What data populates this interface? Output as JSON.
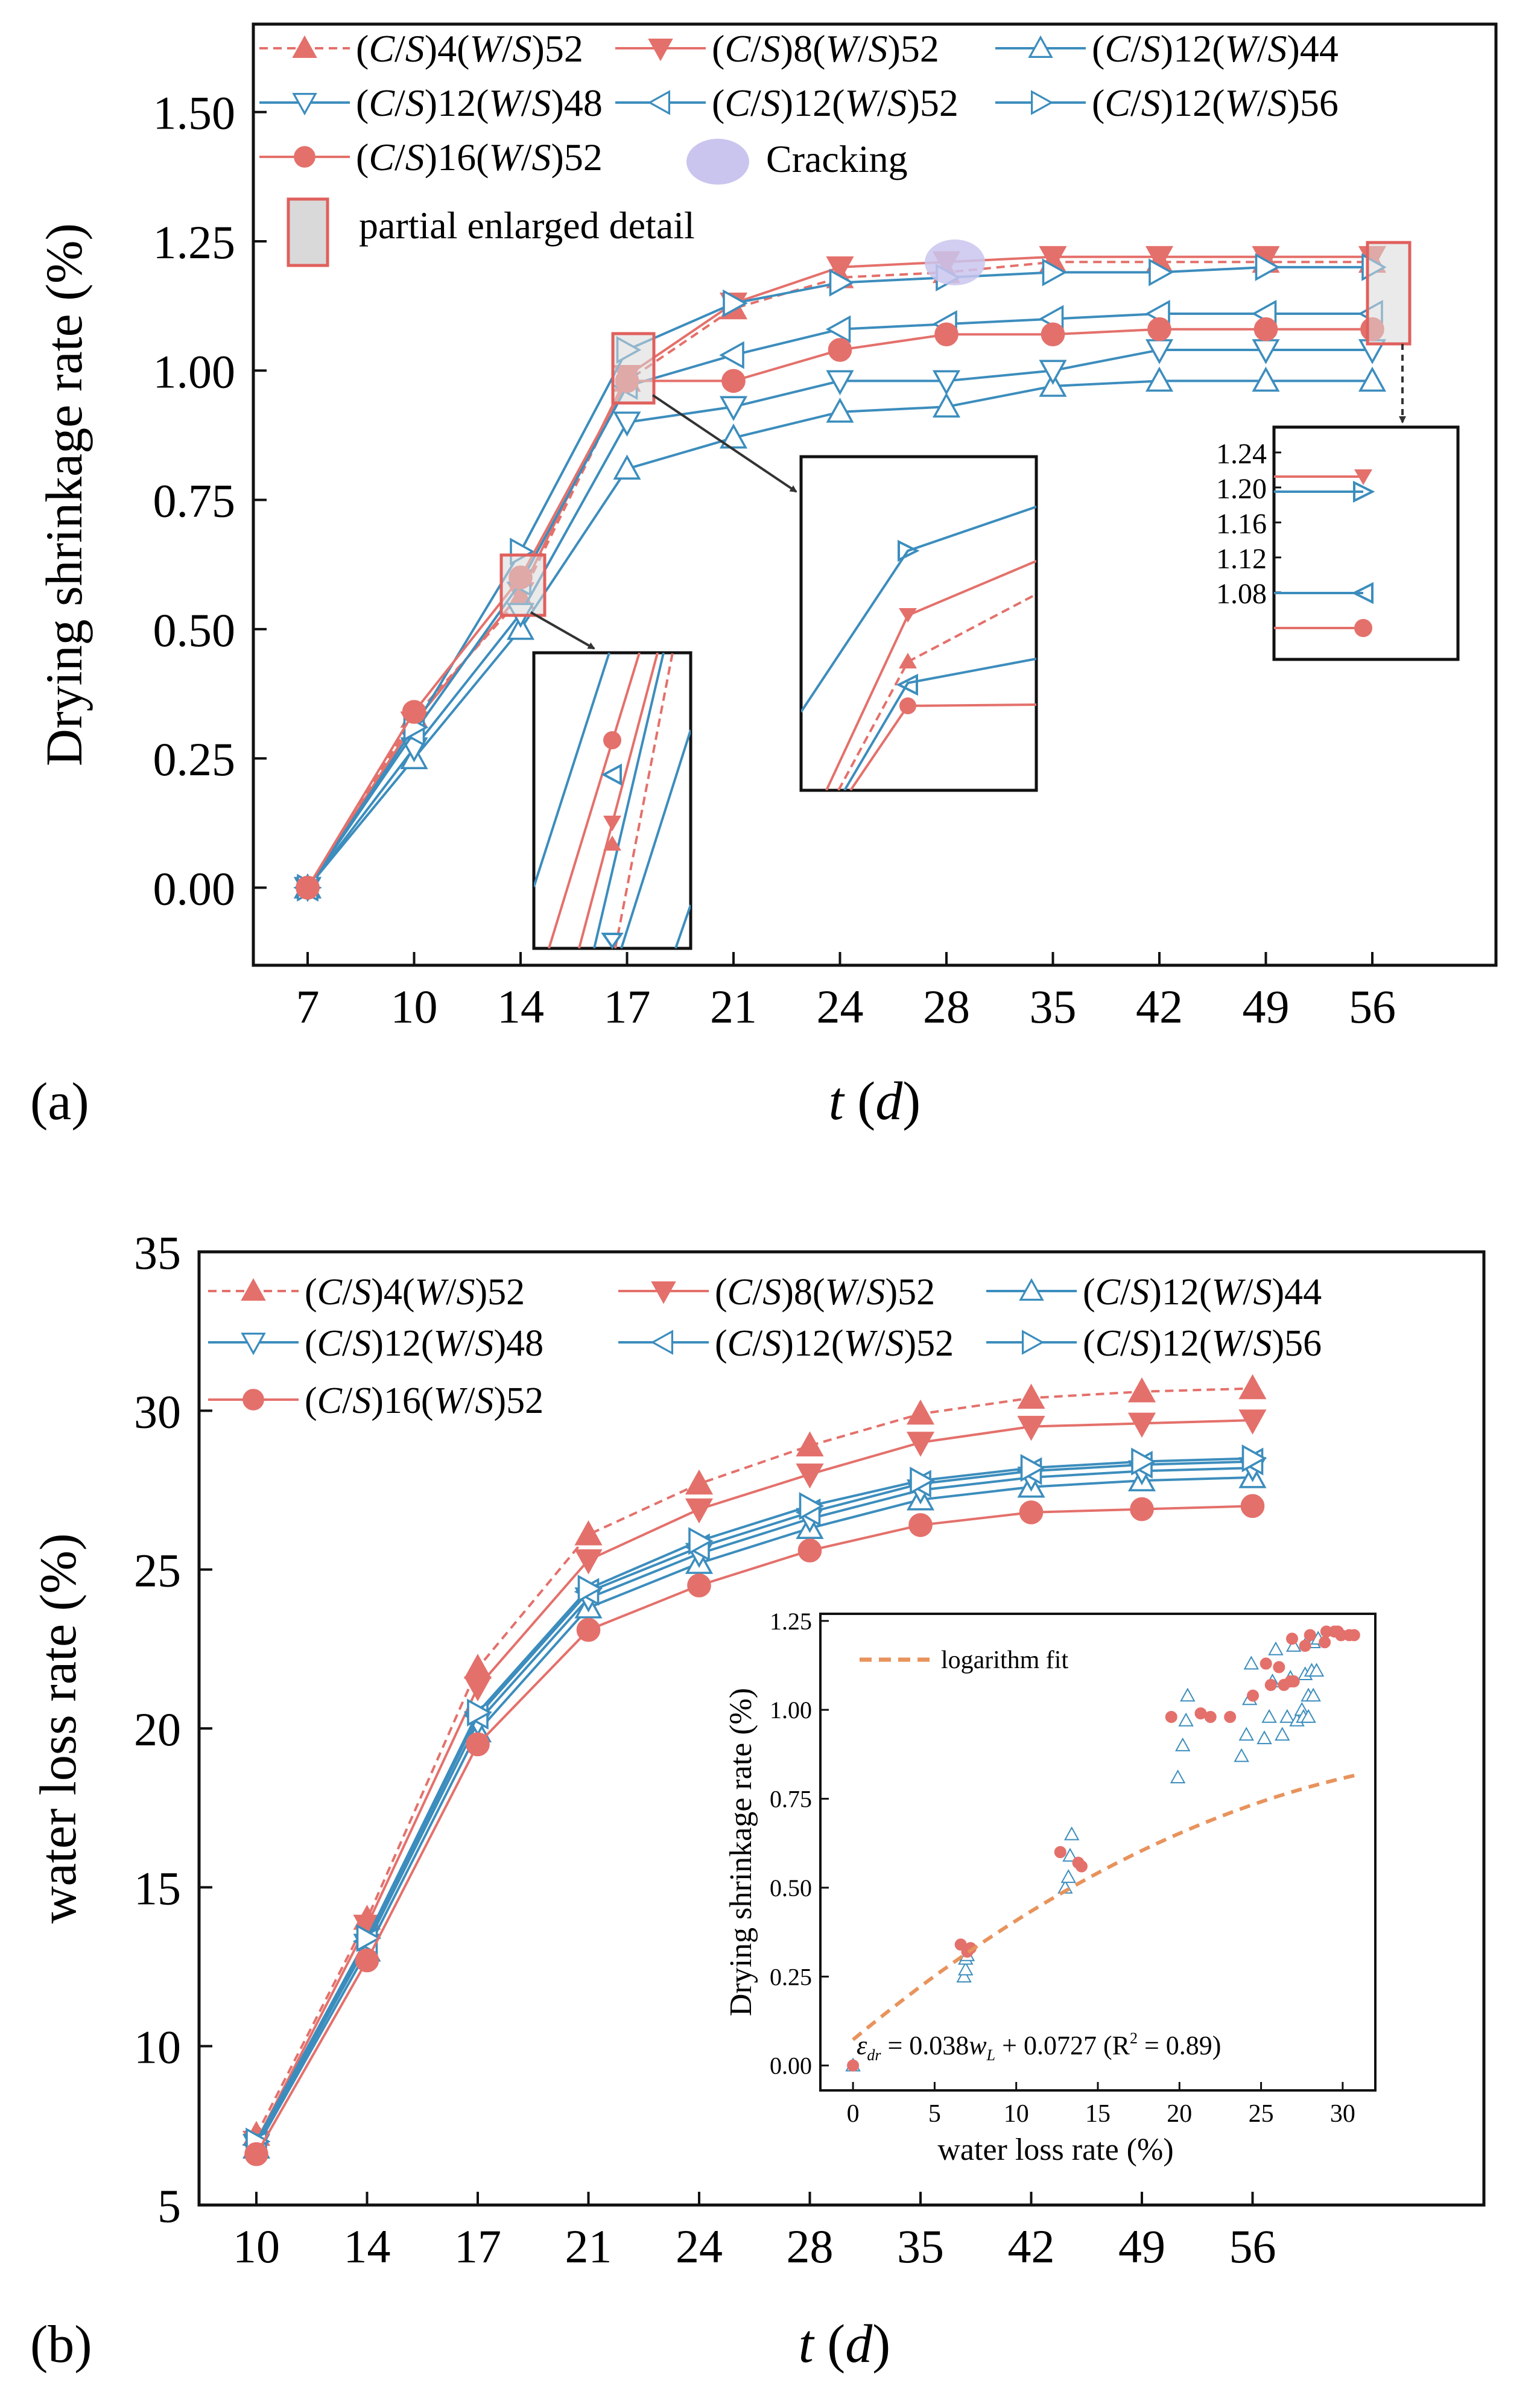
{
  "colors": {
    "red": "#e4706b",
    "blue": "#3c8dbd",
    "cracking": "#c9c5ee",
    "detail_fill": "#d9d9d9",
    "detail_edge": "#e0605d"
  },
  "panel_a": {
    "label": "(a)",
    "legend": {
      "cracking": "Cracking",
      "detail": "partial enlarged detail"
    },
    "chart_data": {
      "type": "line",
      "xlabel": "t (d)",
      "ylabel": "Drying shrinkage rate (%)",
      "categories": [
        "7",
        "10",
        "14",
        "17",
        "21",
        "24",
        "28",
        "35",
        "42",
        "49",
        "56"
      ],
      "ylim": [
        -0.15,
        1.67
      ],
      "yticks": [
        "0.00",
        "0.25",
        "0.50",
        "0.75",
        "1.00",
        "1.25",
        "1.50"
      ],
      "series": [
        {
          "name": "(C/S)4(W/S)52",
          "color": "red",
          "marker": "triangle-up",
          "filled": true,
          "dashed": true,
          "values": [
            0.0,
            0.33,
            0.56,
            0.98,
            1.12,
            1.18,
            1.19,
            1.21,
            1.21,
            1.21,
            1.21
          ]
        },
        {
          "name": "(C/S)8(W/S)52",
          "color": "red",
          "marker": "triangle-down",
          "filled": true,
          "dashed": false,
          "values": [
            0.0,
            0.32,
            0.57,
            0.99,
            1.13,
            1.2,
            1.21,
            1.22,
            1.22,
            1.22,
            1.22
          ]
        },
        {
          "name": "(C/S)12(W/S)44",
          "color": "blue",
          "marker": "triangle-up",
          "filled": false,
          "dashed": false,
          "values": [
            0.0,
            0.25,
            0.5,
            0.81,
            0.87,
            0.92,
            0.93,
            0.97,
            0.98,
            0.98,
            0.98
          ]
        },
        {
          "name": "(C/S)12(W/S)48",
          "color": "blue",
          "marker": "triangle-down",
          "filled": false,
          "dashed": false,
          "values": [
            0.0,
            0.27,
            0.53,
            0.9,
            0.93,
            0.98,
            0.98,
            1.0,
            1.04,
            1.04,
            1.04
          ]
        },
        {
          "name": "(C/S)12(W/S)52",
          "color": "blue",
          "marker": "triangle-left",
          "filled": false,
          "dashed": false,
          "values": [
            0.0,
            0.3,
            0.59,
            0.97,
            1.03,
            1.08,
            1.09,
            1.1,
            1.11,
            1.11,
            1.11
          ]
        },
        {
          "name": "(C/S)12(W/S)56",
          "color": "blue",
          "marker": "triangle-right",
          "filled": false,
          "dashed": false,
          "values": [
            0.0,
            0.31,
            0.65,
            1.04,
            1.13,
            1.17,
            1.18,
            1.19,
            1.19,
            1.2,
            1.2
          ]
        },
        {
          "name": "(C/S)16(W/S)52",
          "color": "red",
          "marker": "circle",
          "filled": true,
          "dashed": false,
          "values": [
            0.0,
            0.34,
            0.6,
            0.98,
            0.98,
            1.04,
            1.07,
            1.07,
            1.08,
            1.08,
            1.08
          ]
        }
      ],
      "annotations": {
        "cracking_point": {
          "x": "28",
          "y": 1.21
        },
        "inset_56_ticks": [
          "1.24",
          "1.20",
          "1.16",
          "1.12",
          "1.08"
        ]
      }
    }
  },
  "panel_b": {
    "label": "(b)",
    "chart_data": {
      "type": "line",
      "xlabel": "t (d)",
      "ylabel": "water loss rate (%)",
      "categories": [
        "10",
        "14",
        "17",
        "21",
        "24",
        "28",
        "35",
        "42",
        "49",
        "56"
      ],
      "ylim": [
        5,
        35
      ],
      "yticks": [
        "5",
        "10",
        "15",
        "20",
        "25",
        "30",
        "35"
      ],
      "series": [
        {
          "name": "(C/S)4(W/S)52",
          "color": "red",
          "marker": "triangle-up",
          "filled": true,
          "dashed": true,
          "values": [
            7.2,
            14.0,
            21.9,
            26.1,
            27.7,
            28.9,
            29.9,
            30.4,
            30.6,
            30.7
          ]
        },
        {
          "name": "(C/S)8(W/S)52",
          "color": "red",
          "marker": "triangle-down",
          "filled": true,
          "dashed": false,
          "values": [
            7.0,
            13.8,
            21.3,
            25.3,
            26.9,
            28.0,
            29.0,
            29.5,
            29.6,
            29.7
          ]
        },
        {
          "name": "(C/S)12(W/S)44",
          "color": "blue",
          "marker": "triangle-up",
          "filled": false,
          "dashed": false,
          "values": [
            6.8,
            13.0,
            19.9,
            23.8,
            25.2,
            26.3,
            27.2,
            27.6,
            27.8,
            27.9
          ]
        },
        {
          "name": "(C/S)12(W/S)48",
          "color": "blue",
          "marker": "triangle-down",
          "filled": false,
          "dashed": false,
          "values": [
            6.9,
            13.2,
            20.2,
            24.1,
            25.5,
            26.6,
            27.5,
            27.9,
            28.1,
            28.2
          ]
        },
        {
          "name": "(C/S)12(W/S)52",
          "color": "blue",
          "marker": "triangle-left",
          "filled": false,
          "dashed": false,
          "values": [
            6.9,
            13.3,
            20.4,
            24.3,
            25.7,
            26.8,
            27.7,
            28.1,
            28.3,
            28.4
          ]
        },
        {
          "name": "(C/S)12(W/S)56",
          "color": "blue",
          "marker": "triangle-right",
          "filled": false,
          "dashed": false,
          "values": [
            7.0,
            13.4,
            20.5,
            24.4,
            25.9,
            27.0,
            27.8,
            28.2,
            28.4,
            28.5
          ]
        },
        {
          "name": "(C/S)16(W/S)52",
          "color": "red",
          "marker": "circle",
          "filled": true,
          "dashed": false,
          "values": [
            6.6,
            12.7,
            19.5,
            23.1,
            24.5,
            25.6,
            26.4,
            26.8,
            26.9,
            27.0
          ]
        }
      ]
    },
    "inset": {
      "chart_data": {
        "type": "scatter",
        "xlabel": "water loss rate (%)",
        "ylabel": "Drying shrinkage rate (%)",
        "xlim": [
          -2,
          32
        ],
        "ylim": [
          -0.07,
          1.27
        ],
        "xticks": [
          "0",
          "5",
          "10",
          "15",
          "20",
          "25",
          "30"
        ],
        "yticks": [
          "0.00",
          "0.25",
          "0.50",
          "0.75",
          "1.00",
          "1.25"
        ],
        "fit_label": "logarithm fit",
        "equation": "ε_dr = 0.038w_L + 0.0727 (R² = 0.89)",
        "points_red": [
          [
            0,
            0
          ],
          [
            7.2,
            0.33
          ],
          [
            7.0,
            0.32
          ],
          [
            6.6,
            0.34
          ],
          [
            14.0,
            0.56
          ],
          [
            13.8,
            0.57
          ],
          [
            12.7,
            0.6
          ],
          [
            21.9,
            0.98
          ],
          [
            21.3,
            0.99
          ],
          [
            19.5,
            0.98
          ],
          [
            26.1,
            1.12
          ],
          [
            25.3,
            1.13
          ],
          [
            23.1,
            0.98
          ],
          [
            27.7,
            1.18
          ],
          [
            26.9,
            1.2
          ],
          [
            24.5,
            1.04
          ],
          [
            28.9,
            1.19
          ],
          [
            28.0,
            1.21
          ],
          [
            25.6,
            1.07
          ],
          [
            29.9,
            1.21
          ],
          [
            29.0,
            1.22
          ],
          [
            26.4,
            1.07
          ],
          [
            30.4,
            1.21
          ],
          [
            29.5,
            1.22
          ],
          [
            26.8,
            1.08
          ],
          [
            30.7,
            1.21
          ],
          [
            29.7,
            1.22
          ],
          [
            27.0,
            1.08
          ]
        ],
        "points_blue": [
          [
            0,
            0
          ],
          [
            6.8,
            0.25
          ],
          [
            6.9,
            0.27
          ],
          [
            6.9,
            0.3
          ],
          [
            7.0,
            0.31
          ],
          [
            13.0,
            0.5
          ],
          [
            13.2,
            0.53
          ],
          [
            13.3,
            0.59
          ],
          [
            13.4,
            0.65
          ],
          [
            19.9,
            0.81
          ],
          [
            20.2,
            0.9
          ],
          [
            20.4,
            0.97
          ],
          [
            20.5,
            1.04
          ],
          [
            23.8,
            0.87
          ],
          [
            24.1,
            0.93
          ],
          [
            24.3,
            1.03
          ],
          [
            24.4,
            1.13
          ],
          [
            25.2,
            0.92
          ],
          [
            25.5,
            0.98
          ],
          [
            25.7,
            1.08
          ],
          [
            25.9,
            1.17
          ],
          [
            26.3,
            0.93
          ],
          [
            26.6,
            0.98
          ],
          [
            26.8,
            1.09
          ],
          [
            27.0,
            1.18
          ],
          [
            27.2,
            0.97
          ],
          [
            27.5,
            1.0
          ],
          [
            27.7,
            1.1
          ],
          [
            27.8,
            1.19
          ],
          [
            27.6,
            0.98
          ],
          [
            27.9,
            1.04
          ],
          [
            28.1,
            1.11
          ],
          [
            28.2,
            1.19
          ],
          [
            27.9,
            0.98
          ],
          [
            28.2,
            1.04
          ],
          [
            28.4,
            1.11
          ],
          [
            28.5,
            1.2
          ]
        ]
      }
    }
  }
}
